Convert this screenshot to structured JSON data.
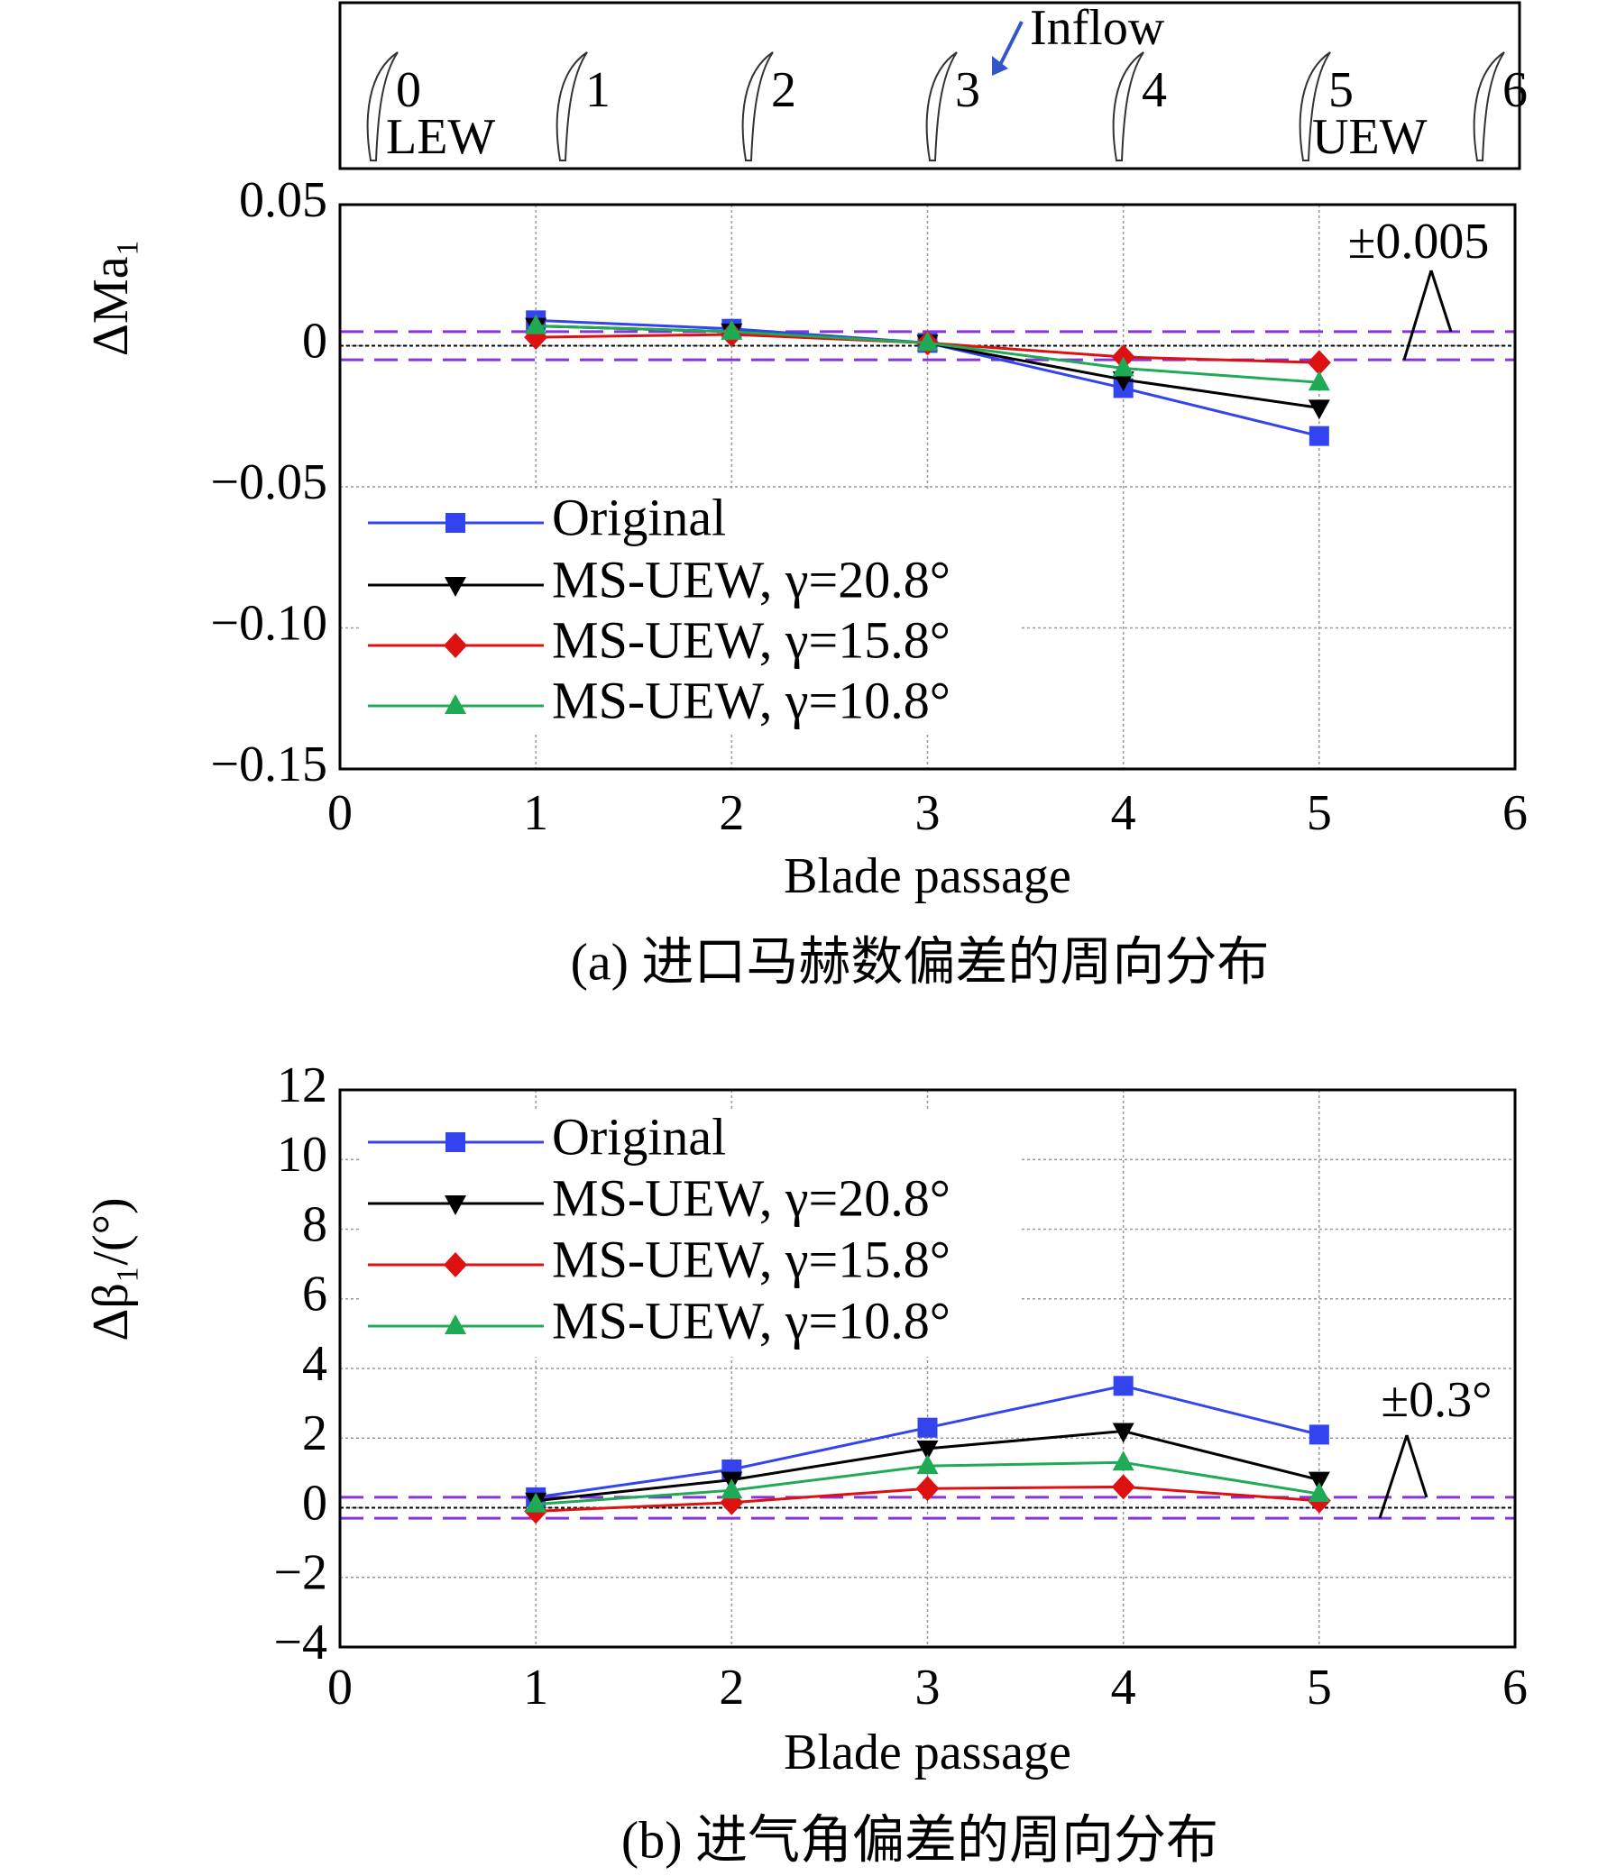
{
  "header": {
    "labels": [
      "0",
      "1",
      "2",
      "3",
      "4",
      "5",
      "6"
    ],
    "lew": "LEW",
    "uew": "UEW",
    "inflow": "Inflow"
  },
  "chart_data": [
    {
      "type": "line",
      "caption": "(a) 进口马赫数偏差的周向分布",
      "x_label": "Blade passage",
      "y_label": "ΔMa₁",
      "x": [
        1,
        2,
        3,
        4,
        5
      ],
      "series": [
        {
          "name": "Original",
          "color": "#3344ee",
          "marker": "square",
          "values": [
            0.009,
            0.006,
            0.001,
            -0.015,
            -0.032
          ]
        },
        {
          "name": "MS-UEW, γ=20.8°",
          "color": "#000000",
          "marker": "triangle-down",
          "values": [
            0.007,
            0.005,
            0.001,
            -0.012,
            -0.022
          ]
        },
        {
          "name": "MS-UEW, γ=15.8°",
          "color": "#dd1111",
          "marker": "diamond",
          "values": [
            0.003,
            0.004,
            0.001,
            -0.004,
            -0.006
          ]
        },
        {
          "name": "MS-UEW, γ=10.8°",
          "color": "#1faa55",
          "marker": "triangle-up",
          "values": [
            0.007,
            0.005,
            0.001,
            -0.008,
            -0.013
          ]
        }
      ],
      "xlim": [
        0,
        6
      ],
      "xticks": [
        0,
        1,
        2,
        3,
        4,
        5,
        6
      ],
      "ylim": [
        -0.15,
        0.05
      ],
      "yticks": [
        {
          "value": -0.15,
          "label": "−0.15"
        },
        {
          "value": -0.1,
          "label": "−0.10"
        },
        {
          "value": -0.05,
          "label": "−0.05"
        },
        0,
        0.05
      ],
      "ref_lines": [
        0.005,
        -0.005
      ],
      "ref_label": "±0.005",
      "ref_color": "#8833dd",
      "grid": true,
      "legend": "upper left"
    },
    {
      "type": "line",
      "caption": "(b) 进气角偏差的周向分布",
      "x_label": "Blade passage",
      "y_label": "Δβ₁/(°)",
      "x": [
        1,
        2,
        3,
        4,
        5
      ],
      "series": [
        {
          "name": "Original",
          "color": "#3344ee",
          "marker": "square",
          "values": [
            0.3,
            1.1,
            2.3,
            3.5,
            2.1
          ]
        },
        {
          "name": "MS-UEW, γ=20.8°",
          "color": "#000000",
          "marker": "triangle-down",
          "values": [
            0.2,
            0.8,
            1.7,
            2.2,
            0.8
          ]
        },
        {
          "name": "MS-UEW, γ=15.8°",
          "color": "#dd1111",
          "marker": "diamond",
          "values": [
            -0.1,
            0.15,
            0.55,
            0.6,
            0.2
          ]
        },
        {
          "name": "MS-UEW, γ=10.8°",
          "color": "#1faa55",
          "marker": "triangle-up",
          "values": [
            0.1,
            0.5,
            1.2,
            1.3,
            0.4
          ]
        }
      ],
      "xlim": [
        0,
        6
      ],
      "xticks": [
        0,
        1,
        2,
        3,
        4,
        5,
        6
      ],
      "ylim": [
        -4,
        12
      ],
      "yticks": [
        {
          "value": -4,
          "label": "−4"
        },
        {
          "value": -2,
          "label": "−2"
        },
        0,
        2,
        4,
        6,
        8,
        10,
        12
      ],
      "ref_lines": [
        0.3,
        -0.3
      ],
      "ref_label": "±0.3°",
      "ref_color": "#8833dd",
      "grid": true,
      "legend": "upper left"
    }
  ]
}
